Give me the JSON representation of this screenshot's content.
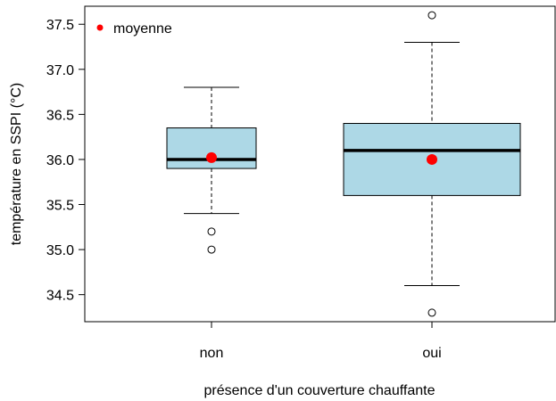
{
  "chart_data": {
    "type": "box",
    "title": "",
    "xlabel": "présence d'un couverture chauffante",
    "ylabel": "température en SSPI (°C)",
    "ylim": [
      34.2,
      37.7
    ],
    "yticks": [
      "34.5",
      "35.0",
      "35.5",
      "36.0",
      "36.5",
      "37.0",
      "37.5"
    ],
    "categories": [
      "non",
      "oui"
    ],
    "groups": [
      {
        "category": "non",
        "whisker_low": 35.4,
        "q1": 35.9,
        "median": 36.0,
        "q3": 36.35,
        "whisker_high": 36.8,
        "mean": 36.02,
        "outliers": [
          35.2,
          35.0
        ]
      },
      {
        "category": "oui",
        "whisker_low": 34.6,
        "q1": 35.6,
        "median": 36.1,
        "q3": 36.4,
        "whisker_high": 37.3,
        "mean": 36.0,
        "outliers": [
          37.6,
          34.3
        ]
      }
    ],
    "legend": {
      "position": "top-left",
      "entries": [
        {
          "label": "moyenne",
          "symbol": "dot",
          "color": "#ff0000"
        }
      ]
    },
    "colors": {
      "box_fill": "#add8e6",
      "mean_marker": "#ff0000",
      "line": "#000000"
    },
    "grid": false
  }
}
